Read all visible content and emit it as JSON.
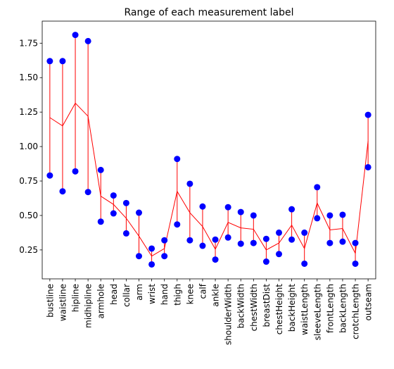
{
  "chart_data": {
    "type": "range_dot",
    "title": "Range of each measurement label",
    "xlabel": "",
    "ylabel": "",
    "ylim": [
      0.04,
      1.91
    ],
    "y_ticks": [
      0.25,
      0.5,
      0.75,
      1.0,
      1.25,
      1.5,
      1.75
    ],
    "y_tick_labels": [
      "0.25",
      "0.50",
      "0.75",
      "1.00",
      "1.25",
      "1.50",
      "1.75"
    ],
    "grid": false,
    "legend": "none",
    "categories": [
      "bustline",
      "waistline",
      "hipline",
      "midhipline",
      "armhole",
      "head",
      "collar",
      "arm",
      "wrist",
      "hand",
      "thigh",
      "knee",
      "calf",
      "ankle",
      "shoulderWidth",
      "backWidth",
      "chestWidth",
      "breastDist",
      "chestHeight",
      "backHeight",
      "waistLength",
      "sleeveLength",
      "frontLength",
      "backLength",
      "crotchLength",
      "outseam"
    ],
    "min_values": [
      0.79,
      0.675,
      0.82,
      0.67,
      0.455,
      0.515,
      0.37,
      0.205,
      0.145,
      0.205,
      0.435,
      0.32,
      0.28,
      0.18,
      0.34,
      0.295,
      0.3,
      0.165,
      0.22,
      0.325,
      0.15,
      0.48,
      0.3,
      0.31,
      0.15,
      0.85
    ],
    "max_values": [
      1.62,
      1.62,
      1.81,
      1.765,
      0.83,
      0.645,
      0.59,
      0.52,
      0.26,
      0.32,
      0.91,
      0.73,
      0.565,
      0.325,
      0.56,
      0.525,
      0.5,
      0.33,
      0.375,
      0.545,
      0.375,
      0.705,
      0.5,
      0.505,
      0.3,
      1.23
    ],
    "mean_values": [
      1.21,
      1.15,
      1.315,
      1.22,
      0.64,
      0.58,
      0.48,
      0.35,
      0.205,
      0.26,
      0.675,
      0.52,
      0.42,
      0.255,
      0.45,
      0.41,
      0.4,
      0.25,
      0.3,
      0.43,
      0.26,
      0.59,
      0.395,
      0.405,
      0.225,
      1.04
    ],
    "colors": {
      "point": "#0000ff",
      "line": "#ff0000",
      "axis": "#000000",
      "text": "#000000"
    }
  }
}
